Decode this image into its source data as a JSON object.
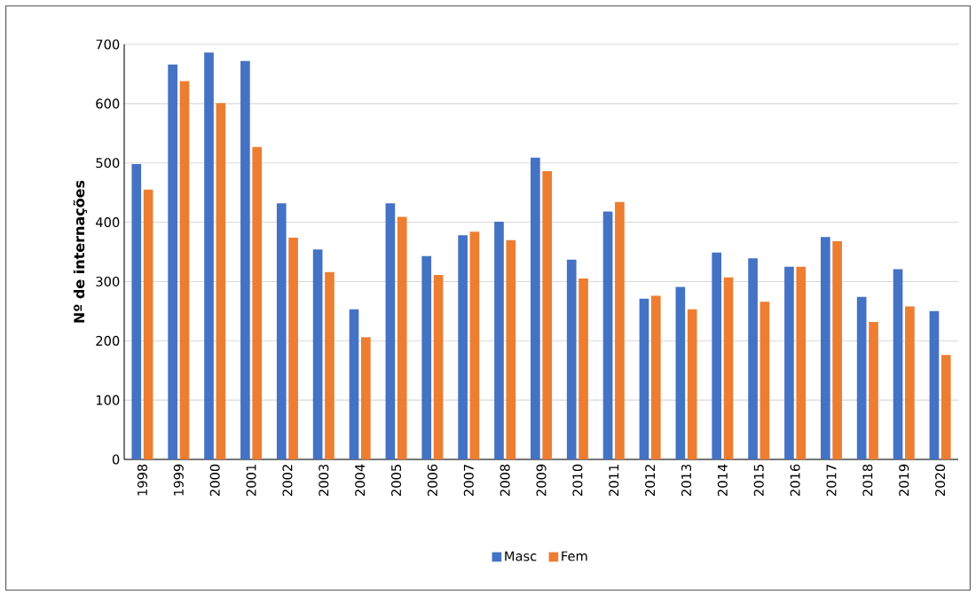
{
  "chart_data": {
    "type": "bar",
    "ylabel": "Nº de internações",
    "categories": [
      "1998",
      "1999",
      "2000",
      "2001",
      "2002",
      "2003",
      "2004",
      "2005",
      "2006",
      "2007",
      "2008",
      "2009",
      "2010",
      "2011",
      "2012",
      "2013",
      "2014",
      "2015",
      "2016",
      "2017",
      "2018",
      "2019",
      "2020"
    ],
    "series": [
      {
        "name": "Masc",
        "color": "#4472c4",
        "values": [
          498,
          666,
          686,
          672,
          432,
          354,
          253,
          432,
          343,
          378,
          401,
          509,
          337,
          418,
          271,
          291,
          349,
          339,
          325,
          375,
          274,
          321,
          250
        ]
      },
      {
        "name": "Fem",
        "color": "#ed7d31",
        "values": [
          455,
          638,
          601,
          527,
          374,
          316,
          206,
          409,
          311,
          384,
          370,
          486,
          305,
          434,
          276,
          253,
          307,
          266,
          325,
          368,
          232,
          258,
          176
        ]
      }
    ],
    "ylim": [
      0,
      700
    ],
    "yticks": [
      0,
      100,
      200,
      300,
      400,
      500,
      600,
      700
    ],
    "grid": "y",
    "legend": "bottom"
  }
}
